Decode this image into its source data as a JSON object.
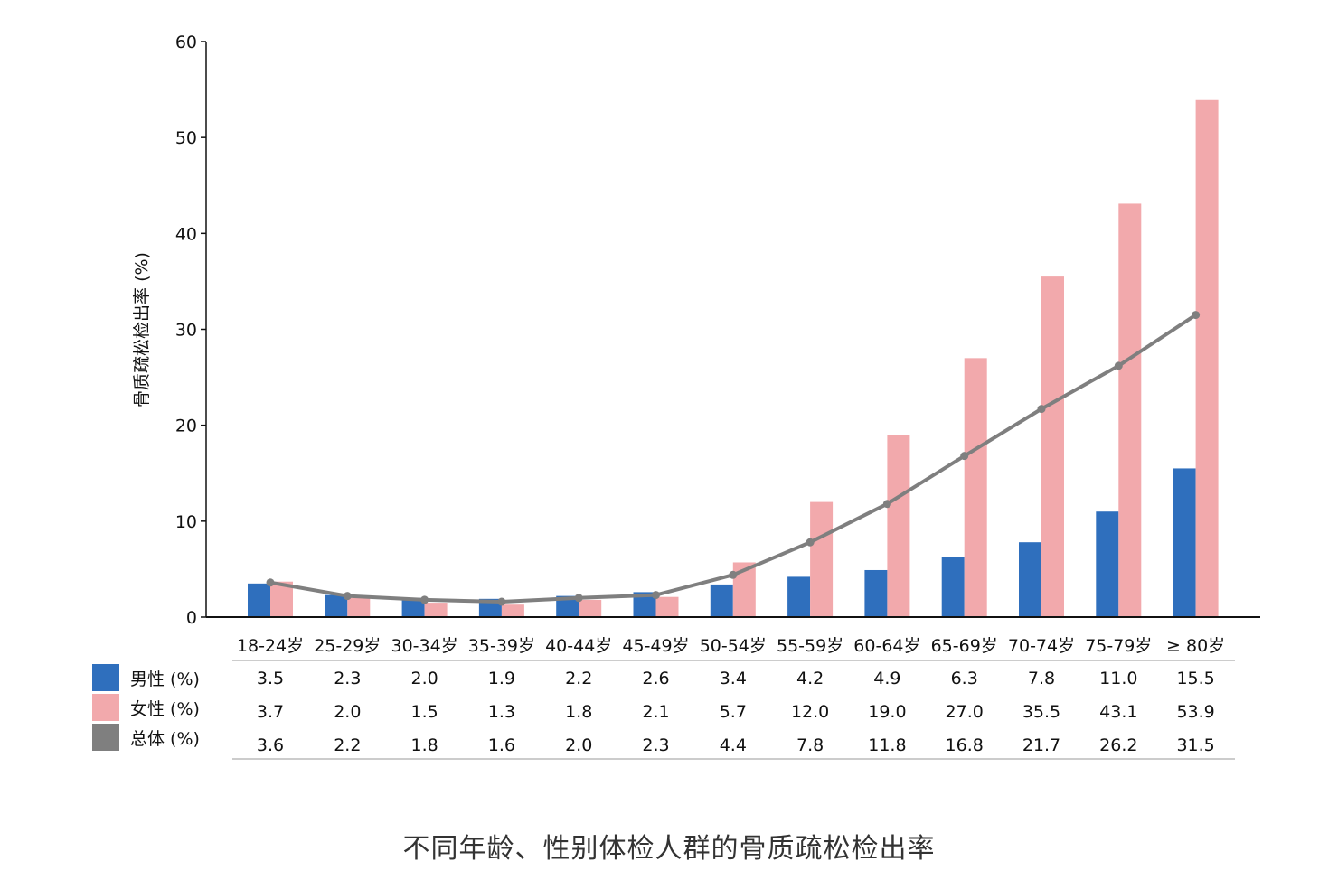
{
  "chart_data": {
    "type": "bar",
    "title": "不同年龄、性别体检人群的骨质疏松检出率",
    "ylabel": "骨质疏松检出率 (%)",
    "xlabel": "",
    "ylim": [
      0,
      60
    ],
    "yticks": [
      0,
      10,
      20,
      30,
      40,
      50,
      60
    ],
    "grid": false,
    "legend_position": "bottom-left",
    "categories": [
      "18-24岁",
      "25-29岁",
      "30-34岁",
      "35-39岁",
      "40-44岁",
      "45-49岁",
      "50-54岁",
      "55-59岁",
      "60-64岁",
      "65-69岁",
      "70-74岁",
      "75-79岁",
      "≥ 80岁"
    ],
    "series": [
      {
        "name": "男性 (%)",
        "kind": "bar",
        "color": "#2f6fbd",
        "values": [
          3.5,
          2.3,
          2.0,
          1.9,
          2.2,
          2.6,
          3.4,
          4.2,
          4.9,
          6.3,
          7.8,
          11.0,
          15.5
        ],
        "labels": [
          "3.5",
          "2.3",
          "2.0",
          "1.9",
          "2.2",
          "2.6",
          "3.4",
          "4.2",
          "4.9",
          "6.3",
          "7.8",
          "11.0",
          "15.5"
        ]
      },
      {
        "name": "女性 (%)",
        "kind": "bar",
        "color": "#f2a9ac",
        "values": [
          3.7,
          2.0,
          1.5,
          1.3,
          1.8,
          2.1,
          5.7,
          12.0,
          19.0,
          27.0,
          35.5,
          43.1,
          53.9
        ],
        "labels": [
          "3.7",
          "2.0",
          "1.5",
          "1.3",
          "1.8",
          "2.1",
          "5.7",
          "12.0",
          "19.0",
          "27.0",
          "35.5",
          "43.1",
          "53.9"
        ]
      },
      {
        "name": "总体 (%)",
        "kind": "line",
        "color": "#7f7f7f",
        "values": [
          3.6,
          2.2,
          1.8,
          1.6,
          2.0,
          2.3,
          4.4,
          7.8,
          11.8,
          16.8,
          21.7,
          26.2,
          31.5
        ],
        "labels": [
          "3.6",
          "2.2",
          "1.8",
          "1.6",
          "2.0",
          "2.3",
          "4.4",
          "7.8",
          "11.8",
          "16.8",
          "21.7",
          "26.2",
          "31.5"
        ]
      }
    ]
  }
}
